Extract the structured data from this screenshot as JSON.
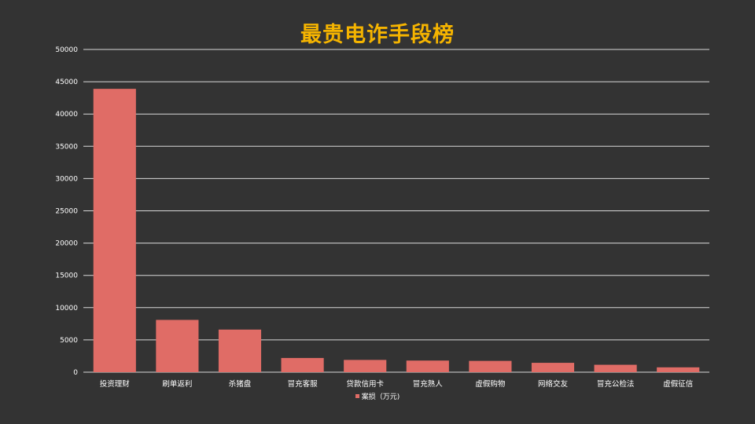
{
  "chart_data": {
    "type": "bar",
    "title": "最贵电诈手段榜",
    "categories": [
      "投资理财",
      "刷单返利",
      "杀猪盘",
      "冒充客服",
      "贷款信用卡",
      "冒充熟人",
      "虚假购物",
      "网络交友",
      "冒充公检法",
      "虚假征信"
    ],
    "series": [
      {
        "name": "案损（万元)",
        "values": [
          43900,
          8100,
          6600,
          2200,
          1900,
          1800,
          1750,
          1450,
          1150,
          750
        ]
      }
    ],
    "ylim": [
      0,
      50000
    ],
    "yticks": [
      0,
      5000,
      10000,
      15000,
      20000,
      25000,
      30000,
      35000,
      40000,
      45000,
      50000
    ],
    "grid": true,
    "legend_position": "bottom",
    "colors": {
      "bar": "#E06C66",
      "grid": "#D9D9D9",
      "title": "#F5B400",
      "background": "#333333",
      "text": "#FFFFFF"
    }
  }
}
